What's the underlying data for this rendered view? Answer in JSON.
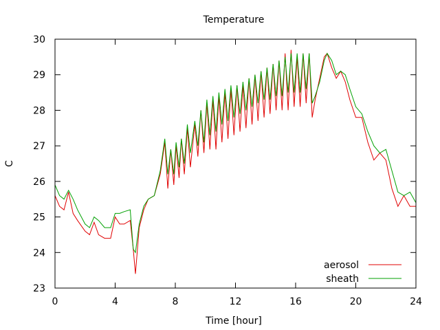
{
  "chart_data": {
    "type": "line",
    "title": "Temperature",
    "xlabel": "Time [hour]",
    "ylabel": "C",
    "xlim": [
      0,
      24
    ],
    "ylim": [
      23,
      30
    ],
    "xticks": [
      0,
      4,
      8,
      12,
      16,
      20,
      24
    ],
    "yticks": [
      23,
      24,
      25,
      26,
      27,
      28,
      29,
      30
    ],
    "grid": false,
    "legend_position": "bottom-right",
    "series": [
      {
        "name": "aerosol",
        "color": "#e00000",
        "x": [
          0.0,
          0.3,
          0.6,
          0.9,
          1.2,
          1.5,
          2.0,
          2.3,
          2.6,
          2.9,
          3.3,
          3.7,
          4.0,
          4.3,
          4.6,
          5.0,
          5.2,
          5.35,
          5.6,
          5.9,
          6.2,
          6.6,
          7.0,
          7.3,
          7.5,
          7.7,
          7.9,
          8.05,
          8.25,
          8.4,
          8.6,
          8.8,
          9.0,
          9.3,
          9.5,
          9.7,
          9.9,
          10.1,
          10.3,
          10.5,
          10.7,
          10.9,
          11.1,
          11.3,
          11.5,
          11.7,
          11.9,
          12.1,
          12.3,
          12.5,
          12.7,
          12.9,
          13.1,
          13.3,
          13.5,
          13.7,
          13.9,
          14.1,
          14.3,
          14.5,
          14.7,
          14.9,
          15.1,
          15.3,
          15.5,
          15.7,
          15.9,
          16.1,
          16.3,
          16.5,
          16.7,
          16.9,
          17.1,
          17.3,
          17.6,
          17.9,
          18.1,
          18.4,
          18.7,
          19.0,
          19.3,
          19.6,
          20.0,
          20.4,
          20.8,
          21.2,
          21.6,
          22.0,
          22.4,
          22.8,
          23.2,
          23.6,
          24.0
        ],
        "values": [
          25.6,
          25.3,
          25.2,
          25.7,
          25.1,
          24.9,
          24.6,
          24.5,
          24.85,
          24.5,
          24.4,
          24.4,
          25.0,
          24.8,
          24.8,
          24.9,
          24.1,
          23.4,
          24.7,
          25.2,
          25.5,
          25.6,
          26.2,
          27.1,
          25.8,
          26.9,
          25.9,
          27.0,
          26.1,
          27.2,
          26.2,
          27.5,
          26.4,
          27.6,
          26.7,
          28.0,
          26.8,
          28.2,
          26.9,
          28.3,
          26.9,
          28.4,
          27.1,
          28.5,
          27.2,
          28.6,
          27.3,
          28.7,
          27.4,
          28.7,
          27.5,
          28.9,
          27.6,
          29.0,
          27.7,
          29.1,
          27.8,
          29.2,
          27.9,
          29.3,
          28.0,
          29.4,
          28.0,
          29.6,
          28.0,
          29.7,
          28.1,
          29.5,
          28.1,
          29.6,
          28.2,
          29.6,
          27.8,
          28.3,
          28.9,
          29.5,
          29.6,
          29.2,
          28.9,
          29.1,
          28.8,
          28.3,
          27.8,
          27.8,
          27.1,
          26.6,
          26.8,
          26.6,
          25.8,
          25.3,
          25.6,
          25.3,
          25.3
        ]
      },
      {
        "name": "sheath",
        "color": "#00a000",
        "x": [
          0.0,
          0.3,
          0.6,
          0.9,
          1.2,
          1.5,
          2.0,
          2.3,
          2.6,
          2.9,
          3.3,
          3.7,
          4.0,
          4.3,
          4.6,
          5.0,
          5.2,
          5.35,
          5.6,
          5.9,
          6.2,
          6.6,
          7.0,
          7.3,
          7.5,
          7.7,
          7.9,
          8.05,
          8.25,
          8.4,
          8.6,
          8.8,
          9.0,
          9.3,
          9.5,
          9.7,
          9.9,
          10.1,
          10.3,
          10.5,
          10.7,
          10.9,
          11.1,
          11.3,
          11.5,
          11.7,
          11.9,
          12.1,
          12.3,
          12.5,
          12.7,
          12.9,
          13.1,
          13.3,
          13.5,
          13.7,
          13.9,
          14.1,
          14.3,
          14.5,
          14.7,
          14.9,
          15.1,
          15.3,
          15.5,
          15.7,
          15.9,
          16.1,
          16.3,
          16.5,
          16.7,
          16.9,
          17.1,
          17.3,
          17.6,
          17.9,
          18.1,
          18.4,
          18.7,
          19.0,
          19.3,
          19.6,
          20.0,
          20.4,
          20.8,
          21.2,
          21.6,
          22.0,
          22.4,
          22.8,
          23.2,
          23.6,
          24.0
        ],
        "values": [
          25.9,
          25.6,
          25.5,
          25.75,
          25.5,
          25.2,
          24.8,
          24.7,
          25.0,
          24.9,
          24.7,
          24.7,
          25.1,
          25.1,
          25.15,
          25.2,
          24.1,
          24.0,
          24.8,
          25.3,
          25.5,
          25.6,
          26.3,
          27.2,
          26.2,
          26.9,
          26.2,
          27.1,
          26.4,
          27.2,
          26.5,
          27.6,
          26.8,
          27.7,
          27.0,
          28.0,
          27.1,
          28.3,
          27.3,
          28.4,
          27.4,
          28.5,
          27.6,
          28.6,
          27.7,
          28.7,
          27.8,
          28.7,
          27.9,
          28.8,
          28.0,
          28.9,
          28.1,
          29.0,
          28.2,
          29.1,
          28.3,
          29.2,
          28.3,
          29.3,
          28.4,
          29.4,
          28.4,
          29.5,
          28.5,
          29.6,
          28.5,
          29.6,
          28.5,
          29.6,
          28.6,
          29.6,
          28.2,
          28.4,
          28.8,
          29.4,
          29.6,
          29.4,
          29.0,
          29.1,
          29.0,
          28.6,
          28.1,
          27.9,
          27.4,
          27.0,
          26.8,
          26.9,
          26.3,
          25.7,
          25.6,
          25.7,
          25.4
        ]
      }
    ]
  }
}
